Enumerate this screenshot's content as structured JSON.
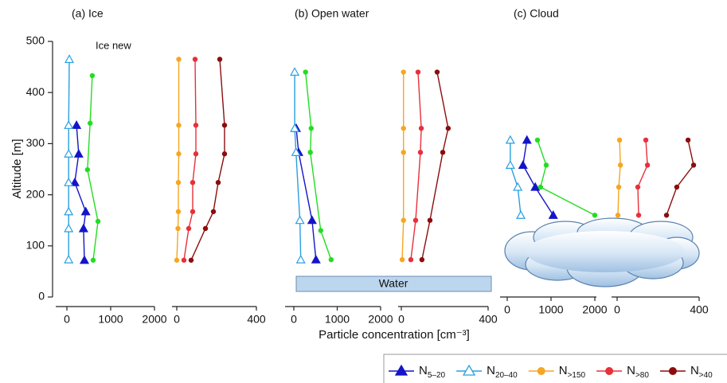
{
  "chart_data": [
    {
      "type": "line",
      "title": "(a) Ice",
      "annotation": "Ice new",
      "ylabel": "Altitude [m]",
      "ylim": [
        0,
        500
      ],
      "yticks": [
        0,
        100,
        200,
        300,
        400,
        500
      ],
      "xlim": [
        0,
        2000
      ],
      "xticks": [
        0,
        1000,
        2000
      ],
      "x2lim": [
        0,
        400
      ],
      "x2ticks": [
        0,
        400
      ],
      "series": [
        {
          "name": "N5–20",
          "color": "#1414c8",
          "marker": "triangle",
          "axis": "x",
          "y": [
            336,
            280,
            224,
            167,
            134,
            72
          ],
          "values": [
            220,
            270,
            180,
            430,
            380,
            400
          ]
        },
        {
          "name": "N20–40",
          "color": "#2a9fe0",
          "marker": "open-triangle",
          "axis": "x",
          "y": [
            465,
            336,
            280,
            224,
            167,
            134,
            73
          ],
          "values": [
            55,
            40,
            40,
            40,
            40,
            40,
            40
          ]
        },
        {
          "color": "#22dd22",
          "marker": "circle",
          "axis": "x",
          "y": [
            433,
            340,
            249,
            148,
            72
          ],
          "values": [
            580,
            530,
            470,
            710,
            600
          ]
        },
        {
          "name": "N>150",
          "color": "#f5a623",
          "marker": "circle",
          "axis": "x2",
          "y": [
            465,
            336,
            280,
            224,
            167,
            134,
            72
          ],
          "values": [
            10,
            10,
            10,
            8,
            8,
            6,
            0
          ]
        },
        {
          "name": "N>80",
          "color": "#e8303a",
          "marker": "circle",
          "axis": "x2",
          "y": [
            465,
            336,
            280,
            224,
            167,
            134,
            72
          ],
          "values": [
            92,
            96,
            96,
            80,
            80,
            60,
            36
          ]
        },
        {
          "name": "N>40",
          "color": "#8b0d0d",
          "marker": "circle",
          "axis": "x2",
          "y": [
            465,
            336,
            280,
            224,
            167,
            134,
            72
          ],
          "values": [
            216,
            240,
            240,
            208,
            184,
            144,
            72
          ]
        }
      ]
    },
    {
      "type": "line",
      "title": "(b) Open water",
      "annotation": "Water",
      "xlabel": "Particle concentration [cm⁻³]",
      "ylim": [
        0,
        500
      ],
      "xlim": [
        0,
        2000
      ],
      "xticks": [
        0,
        1000,
        2000
      ],
      "x2lim": [
        0,
        400
      ],
      "x2ticks": [
        0,
        400
      ],
      "series": [
        {
          "color": "#1414c8",
          "marker": "triangle",
          "axis": "x",
          "y": [
            330,
            283,
            150,
            73
          ],
          "values": [
            55,
            110,
            420,
            510
          ]
        },
        {
          "color": "#2a9fe0",
          "marker": "open-triangle",
          "axis": "x",
          "y": [
            440,
            330,
            283,
            150,
            73
          ],
          "values": [
            20,
            20,
            50,
            140,
            160
          ]
        },
        {
          "color": "#22dd22",
          "marker": "circle",
          "axis": "x",
          "y": [
            440,
            330,
            283,
            130,
            73
          ],
          "values": [
            270,
            400,
            380,
            620,
            860
          ]
        },
        {
          "color": "#f5a623",
          "marker": "circle",
          "axis": "x2",
          "y": [
            440,
            330,
            283,
            150,
            73
          ],
          "values": [
            10,
            10,
            10,
            10,
            4
          ]
        },
        {
          "color": "#e8303a",
          "marker": "circle",
          "axis": "x2",
          "y": [
            440,
            330,
            283,
            150,
            73
          ],
          "values": [
            77,
            92,
            88,
            66,
            44
          ]
        },
        {
          "color": "#8b0d0d",
          "marker": "circle",
          "axis": "x2",
          "y": [
            440,
            330,
            283,
            150,
            73
          ],
          "values": [
            165,
            216,
            191,
            132,
            95
          ]
        }
      ]
    },
    {
      "type": "line",
      "title": "(c) Cloud",
      "ylim": [
        0,
        500
      ],
      "xlim": [
        0,
        2000
      ],
      "xticks": [
        0,
        1000,
        2000
      ],
      "x2lim": [
        0,
        400
      ],
      "x2ticks": [
        0,
        400
      ],
      "series": [
        {
          "color": "#1414c8",
          "marker": "triangle",
          "axis": "x",
          "y": [
            307,
            258,
            215,
            160
          ],
          "values": [
            450,
            360,
            640,
            1050
          ]
        },
        {
          "color": "#2a9fe0",
          "marker": "open-triangle",
          "axis": "x",
          "y": [
            307,
            258,
            215,
            160
          ],
          "values": [
            70,
            70,
            240,
            310
          ]
        },
        {
          "color": "#22dd22",
          "marker": "circle",
          "axis": "x",
          "y": [
            307,
            258,
            215,
            160
          ],
          "values": [
            690,
            890,
            760,
            2000
          ]
        },
        {
          "color": "#f5a623",
          "marker": "circle",
          "axis": "x2",
          "y": [
            307,
            258,
            215,
            160
          ],
          "values": [
            12,
            16,
            8,
            4
          ]
        },
        {
          "color": "#e8303a",
          "marker": "circle",
          "axis": "x2",
          "y": [
            307,
            258,
            215,
            160
          ],
          "values": [
            140,
            148,
            101,
            105
          ]
        },
        {
          "color": "#8b0d0d",
          "marker": "circle",
          "axis": "x2",
          "y": [
            307,
            258,
            215,
            160
          ],
          "values": [
            346,
            373,
            291,
            241
          ]
        }
      ]
    }
  ]
}
